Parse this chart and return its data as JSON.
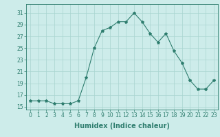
{
  "x": [
    0,
    1,
    2,
    3,
    4,
    5,
    6,
    7,
    8,
    9,
    10,
    11,
    12,
    13,
    14,
    15,
    16,
    17,
    18,
    19,
    20,
    21,
    22,
    23
  ],
  "y": [
    16,
    16,
    16,
    15.5,
    15.5,
    15.5,
    16,
    20,
    25,
    28,
    28.5,
    29.5,
    29.5,
    31,
    29.5,
    27.5,
    26,
    27.5,
    24.5,
    22.5,
    19.5,
    18,
    18,
    19.5
  ],
  "line_color": "#2e7d6e",
  "marker": "*",
  "marker_size": 3,
  "bg_color": "#cdecea",
  "grid_color": "#a8d5d0",
  "xlabel": "Humidex (Indice chaleur)",
  "xlim": [
    -0.5,
    23.5
  ],
  "ylim": [
    14.5,
    32.5
  ],
  "yticks": [
    15,
    17,
    19,
    21,
    23,
    25,
    27,
    29,
    31
  ],
  "xticks": [
    0,
    1,
    2,
    3,
    4,
    5,
    6,
    7,
    8,
    9,
    10,
    11,
    12,
    13,
    14,
    15,
    16,
    17,
    18,
    19,
    20,
    21,
    22,
    23
  ],
  "xtick_labels": [
    "0",
    "1",
    "2",
    "3",
    "4",
    "5",
    "6",
    "7",
    "8",
    "9",
    "10",
    "11",
    "12",
    "13",
    "14",
    "15",
    "16",
    "17",
    "18",
    "19",
    "20",
    "21",
    "22",
    "23"
  ],
  "tick_fontsize": 5.5,
  "xlabel_fontsize": 7
}
